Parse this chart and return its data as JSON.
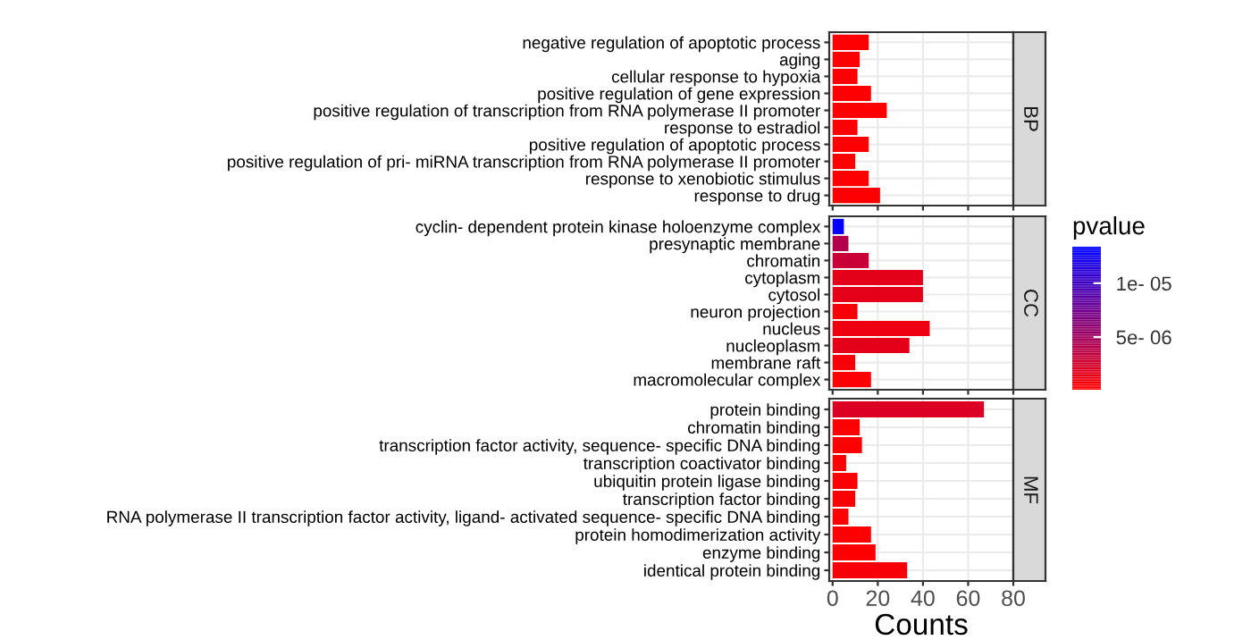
{
  "chart_data": [
    {
      "type": "bar",
      "orientation": "horizontal",
      "annotations": [
        "BP"
      ],
      "categories": [
        "negative regulation of apoptotic process",
        "aging",
        "cellular response to hypoxia",
        "positive regulation of gene expression",
        "positive regulation of transcription from RNA polymerase II promoter",
        "response to estradiol",
        "positive regulation of apoptotic process",
        "positive regulation of pri- miRNA transcription from RNA polymerase II promoter",
        "response to xenobiotic stimulus",
        "response to drug"
      ],
      "values": [
        16,
        12,
        11,
        17,
        24,
        11,
        16,
        10,
        16,
        21
      ],
      "colors": [
        "#fe0001",
        "#fe0001",
        "#fe0001",
        "#fe0001",
        "#fd0002",
        "#fe0001",
        "#fe0001",
        "#fe0001",
        "#fe0001",
        "#fd0002"
      ],
      "xlim": [
        -1.5,
        80
      ],
      "xticks": [
        0,
        20,
        40,
        60,
        80
      ],
      "tick_labels": "y",
      "grid": true
    },
    {
      "type": "bar",
      "orientation": "horizontal",
      "annotations": [
        "CC"
      ],
      "categories": [
        "cyclin- dependent protein kinase holoenzyme complex",
        "presynaptic membrane",
        "chromatin",
        "cytoplasm",
        "cytosol",
        "neuron projection",
        "nucleus",
        "nucleoplasm",
        "membrane raft",
        "macromolecular complex"
      ],
      "values": [
        5,
        7,
        16,
        40,
        40,
        11,
        43,
        34,
        10,
        17
      ],
      "cvalues": [
        1.3e-05,
        4e-06,
        3e-06,
        1.5e-06,
        1.5e-06,
        5e-07,
        1e-06,
        1.5e-06,
        5e-07,
        3e-07
      ],
      "xlim": [
        -1.5,
        80
      ],
      "xticks": [
        0,
        20,
        40,
        60,
        80
      ],
      "tick_labels": "y",
      "grid": true,
      "clabel": "pvalue",
      "clim": [
        1e-07,
        1.34e-05
      ],
      "cticks": [
        {
          "value": 5e-06,
          "label": "5e- 06"
        },
        {
          "value": 1e-05,
          "label": "1e- 05"
        }
      ]
    },
    {
      "type": "bar",
      "orientation": "horizontal",
      "annotations": [
        "MF"
      ],
      "xlabel": "Counts",
      "categories": [
        "protein binding",
        "chromatin binding",
        "transcription factor activity, sequence- specific DNA binding",
        "transcription coactivator binding",
        "ubiquitin protein ligase binding",
        "transcription factor binding",
        "RNA polymerase II transcription factor activity, ligand- activated sequence- specific DNA binding",
        "protein homodimerization activity",
        "enzyme binding",
        "identical protein binding"
      ],
      "values": [
        67,
        12,
        13,
        6,
        11,
        10,
        7,
        17,
        19,
        33
      ],
      "colors": [
        "#db0024",
        "#fd0002",
        "#fd0002",
        "#fe0001",
        "#fd0002",
        "#fd0002",
        "#fe0001",
        "#fd0002",
        "#fd0002",
        "#f70008"
      ],
      "xlim": [
        -1.5,
        80
      ],
      "xticks": [
        0,
        20,
        40,
        60,
        80
      ],
      "grid": true
    }
  ]
}
